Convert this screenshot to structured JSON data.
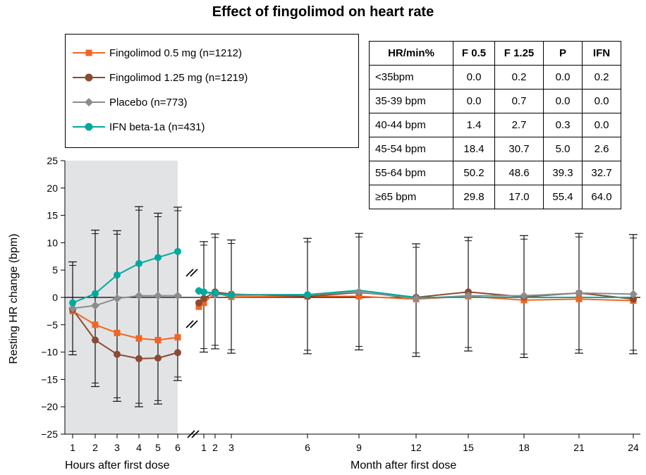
{
  "chart_data": {
    "type": "line",
    "title": "Effect of fingolimod on heart rate",
    "ylabel": "Resting HR change (bpm)",
    "xlabel_hours": "Hours after first dose",
    "xlabel_months": "Month after first dose",
    "ylim": [
      -25,
      25
    ],
    "yticks": [
      25,
      20,
      15,
      10,
      5,
      0,
      -5,
      -10,
      -15,
      -20,
      -25
    ],
    "ytick_labels": [
      "25",
      "20",
      "15",
      "10",
      "5",
      "0",
      "−5",
      "−10",
      "−15",
      "−20",
      "−25"
    ],
    "hour_ticks": [
      "1",
      "2",
      "3",
      "4",
      "5",
      "6"
    ],
    "month_ticks": [
      "1",
      "2",
      "3",
      "6",
      "9",
      "12",
      "15",
      "18",
      "21",
      "24"
    ],
    "shaded_region": "hours 1-6",
    "series": [
      {
        "name": "Fingolimod 0.5 mg (n=1212)",
        "color": "#f26522",
        "marker": "square",
        "hours": [
          -2.5,
          -5,
          -6.5,
          -7.5,
          -7.8,
          -7.3
        ],
        "months": [
          -1,
          0.8,
          0.1,
          0.2,
          0.2,
          -0.3,
          0.2,
          -0.5,
          -0.3,
          -0.6
        ],
        "month_start": -1.7
      },
      {
        "name": "Fingolimod 1.25 mg (n=1219)",
        "color": "#8b4a32",
        "marker": "circle",
        "hours": [
          -2.2,
          -7.8,
          -10.4,
          -11.2,
          -11.1,
          -10.1
        ],
        "months": [
          -0.2,
          1,
          0.6,
          0.2,
          0.9,
          0,
          1,
          0.1,
          0.8,
          -0.3
        ],
        "month_start": -1
      },
      {
        "name": "Placebo (n=773)",
        "color": "#8c8c8c",
        "marker": "diamond",
        "hours": [
          -2,
          -1.5,
          -0.2,
          0.3,
          0.3,
          0.3
        ],
        "months": [
          1,
          0.5,
          0.5,
          0.5,
          1,
          -0.2,
          0.3,
          0.3,
          0.8,
          0.6
        ],
        "month_start": 1.2
      },
      {
        "name": "IFN beta-1a (n=431)",
        "color": "#00a99d",
        "marker": "circle",
        "hours": [
          -1,
          0.7,
          4.1,
          6.2,
          7.3,
          8.4
        ],
        "months": [
          1,
          0.8,
          0.4,
          0.5,
          1.3,
          0,
          0,
          0,
          0,
          0
        ],
        "month_start": 1.2
      }
    ],
    "error_bars_hours": [
      [
        -10.5,
        6.5
      ],
      [
        -16.3,
        12.3
      ],
      [
        -19,
        12.2
      ],
      [
        -20,
        16.6
      ],
      [
        -19.5,
        15.4
      ],
      [
        -15.2,
        16.5
      ]
    ],
    "error_bars_months": [
      [
        -10,
        10.2
      ],
      [
        -9.4,
        11.6
      ],
      [
        -10.2,
        10.5
      ],
      [
        -10.3,
        10.8
      ],
      [
        -9.6,
        11.7
      ],
      [
        -10.8,
        9.8
      ],
      [
        -9.8,
        11
      ],
      [
        -11,
        11.3
      ],
      [
        -10.2,
        11.7
      ],
      [
        -10.3,
        11.5
      ]
    ]
  },
  "legend": [
    {
      "label": "Fingolimod 0.5 mg (n=1212)",
      "color": "#f26522",
      "marker": "square"
    },
    {
      "label": "Fingolimod 1.25 mg (n=1219)",
      "color": "#8b4a32",
      "marker": "circle"
    },
    {
      "label": "Placebo (n=773)",
      "color": "#8c8c8c",
      "marker": "diamond"
    },
    {
      "label": "IFN beta-1a (n=431)",
      "color": "#00a99d",
      "marker": "circle"
    }
  ],
  "table": {
    "headers": [
      "HR/min%",
      "F 0.5",
      "F 1.25",
      "P",
      "IFN"
    ],
    "rows": [
      [
        "<35bpm",
        "0.0",
        "0.2",
        "0.0",
        "0.2"
      ],
      [
        "35-39 bpm",
        "0.0",
        "0.7",
        "0.0",
        "0.0"
      ],
      [
        "40-44 bpm",
        "1.4",
        "2.7",
        "0.3",
        "0.0"
      ],
      [
        "45-54 bpm",
        "18.4",
        "30.7",
        "5.0",
        "2.6"
      ],
      [
        "55-64 bpm",
        "50.2",
        "48.6",
        "39.3",
        "32.7"
      ],
      [
        "≥65 bpm",
        "29.8",
        "17.0",
        "55.4",
        "64.0"
      ]
    ]
  }
}
